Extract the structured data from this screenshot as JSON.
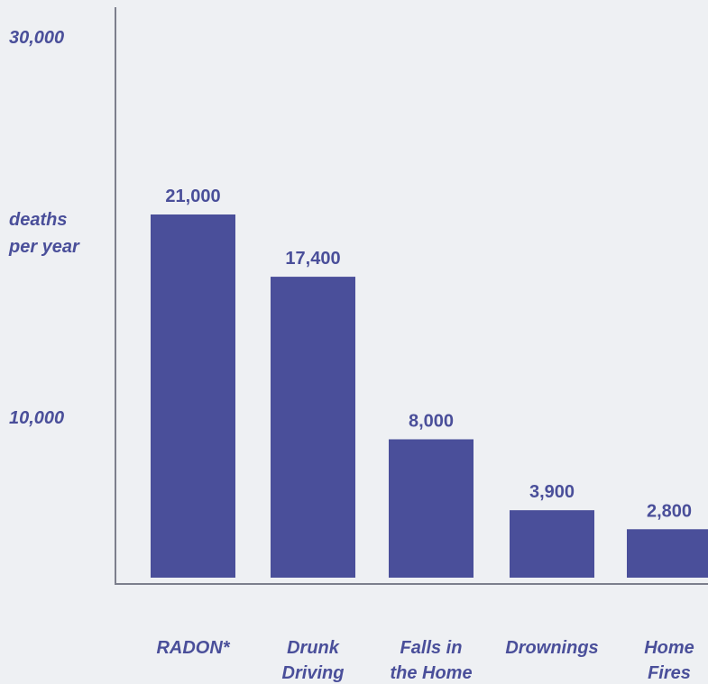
{
  "chart_data": {
    "type": "bar",
    "title": "",
    "xlabel": "",
    "ylabel": "deaths per year",
    "ylabel_lines": [
      "deaths",
      "per year"
    ],
    "y_tick_labels": [
      "30,000",
      "10,000"
    ],
    "categories": [
      "RADON*",
      "Drunk Driving",
      "Falls in the Home",
      "Drownings",
      "Home Fires"
    ],
    "category_lines": [
      [
        "RADON*"
      ],
      [
        "Drunk",
        "Driving"
      ],
      [
        "Falls in",
        "the Home"
      ],
      [
        "Drownings"
      ],
      [
        "Home",
        "Fires"
      ]
    ],
    "values": [
      21000,
      17400,
      8000,
      3900,
      2800
    ],
    "value_labels": [
      "21,000",
      "17,400",
      "8,000",
      "3,900",
      "2,800"
    ],
    "ylim": [
      0,
      30000
    ],
    "grid": false,
    "legend": "none",
    "bar_color": "#4a4f9a",
    "axis_color": "#7c7f8c"
  }
}
